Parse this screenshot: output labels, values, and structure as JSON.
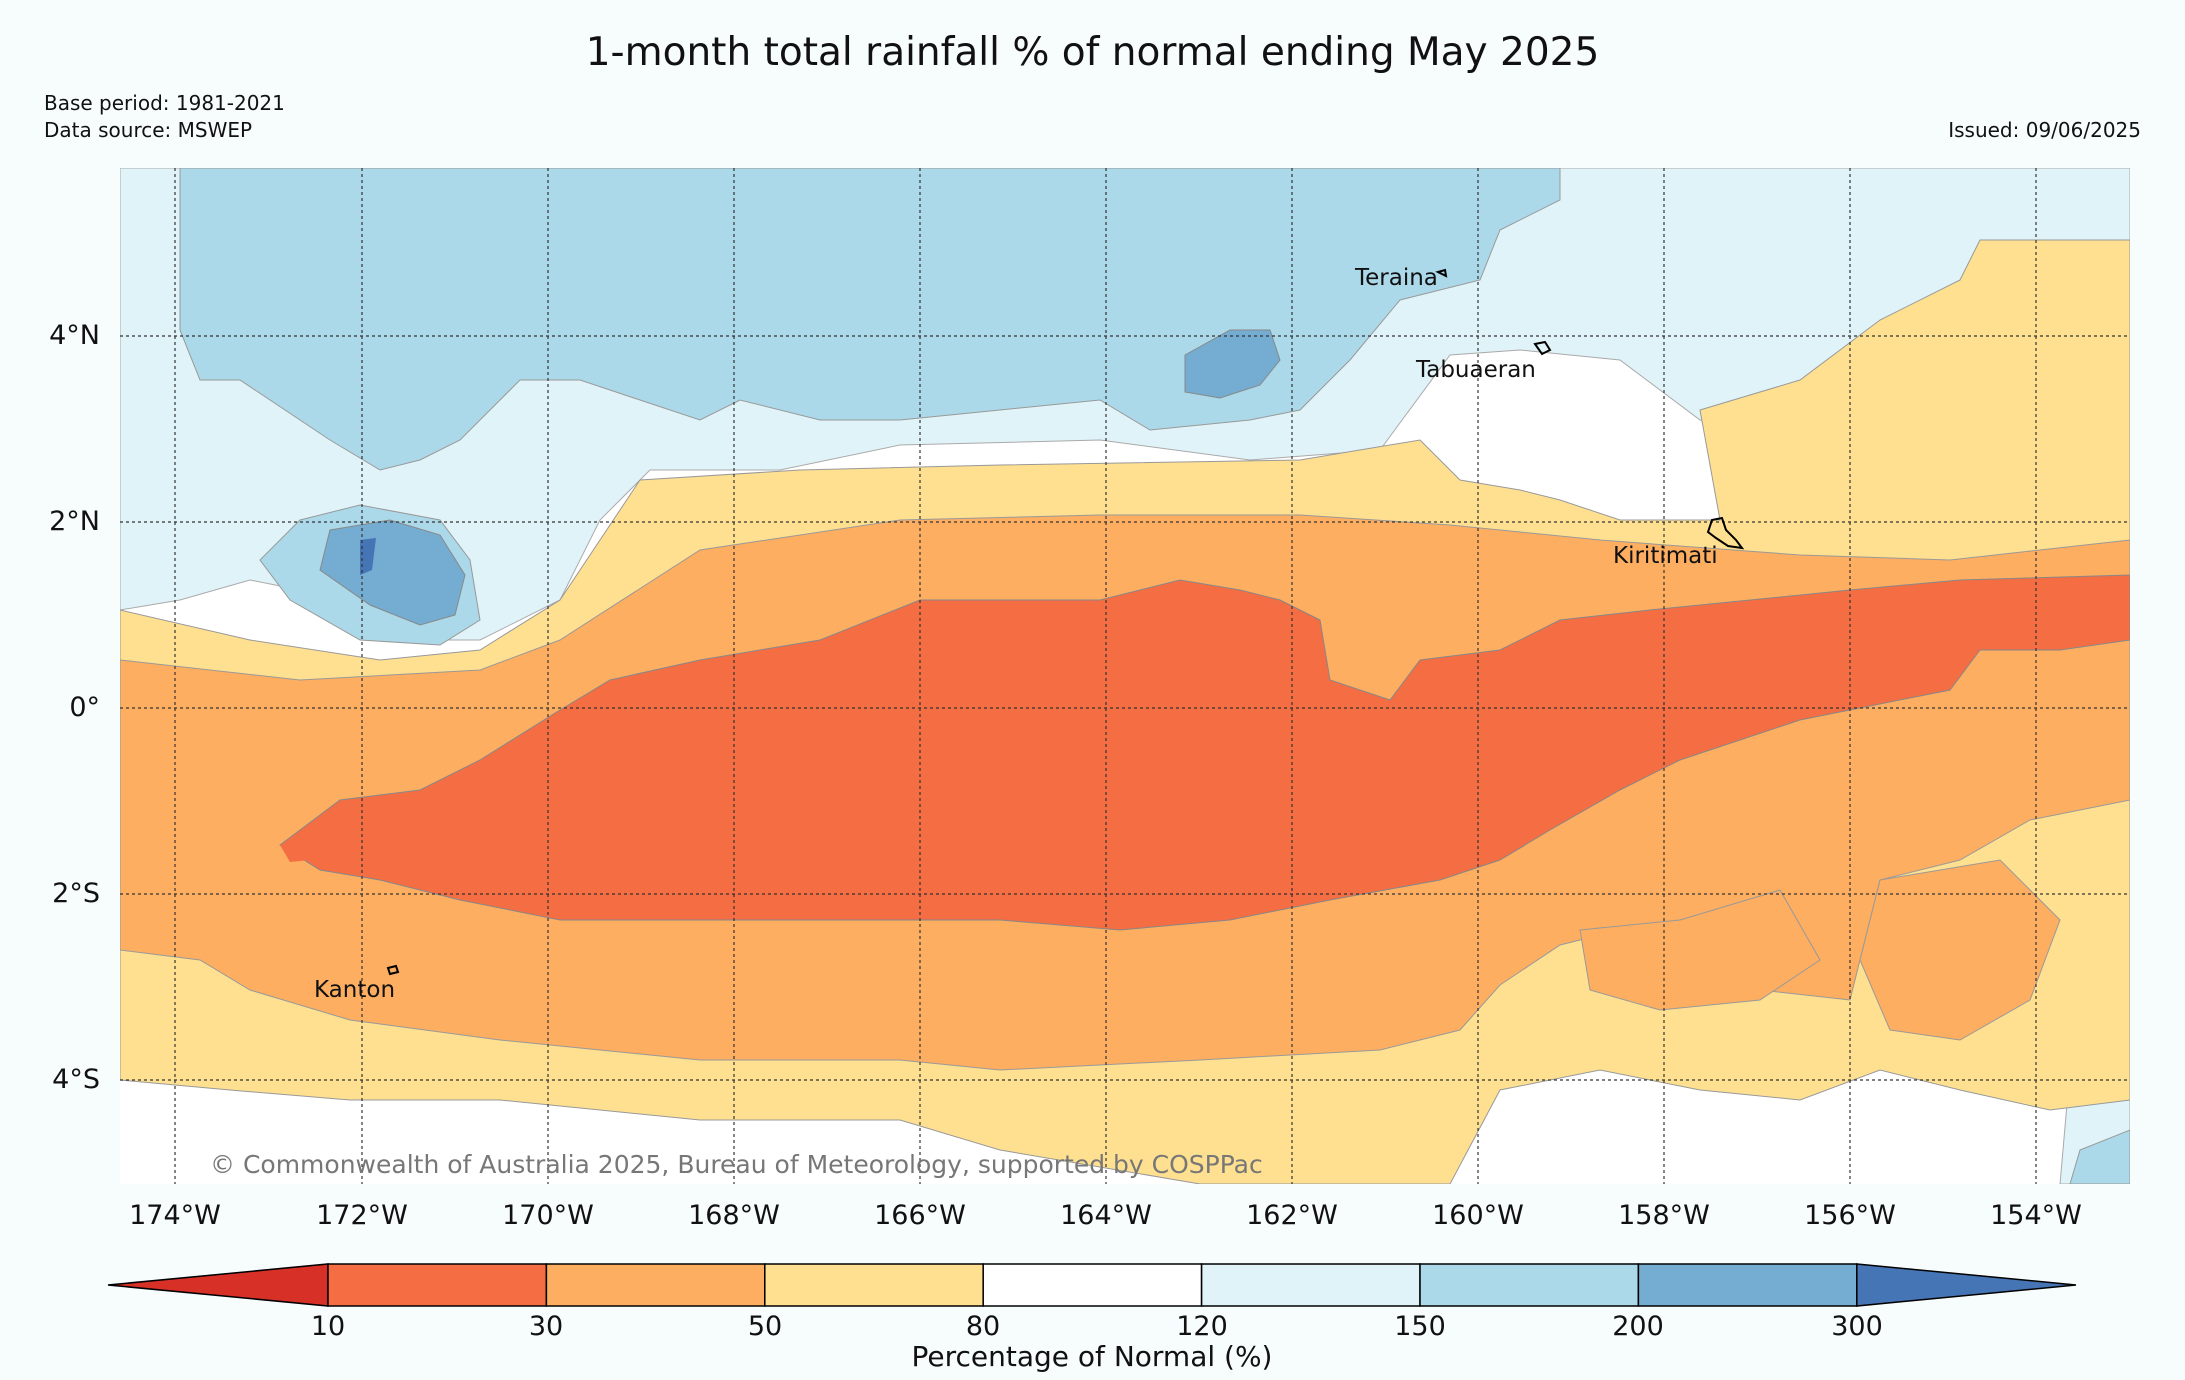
{
  "title": "1-month total rainfall % of normal ending May 2025",
  "base_period": "Base period: 1981-2021",
  "data_source": "Data source: MSWEP",
  "issued": "Issued: 09/06/2025",
  "credit": "© Commonwealth of Australia 2025, Bureau of Meteorology, supported by COSPPac",
  "map": {
    "lon_labels": [
      "174°W",
      "172°W",
      "170°W",
      "168°W",
      "166°W",
      "164°W",
      "162°W",
      "160°W",
      "158°W",
      "156°W",
      "154°W"
    ],
    "lat_labels": [
      "4°N",
      "2°N",
      "0°",
      "2°S",
      "4°S"
    ],
    "places": {
      "teraina": "Teraina",
      "tabuaeran": "Tabuaeran",
      "kiritimati": "Kiritimati",
      "kanton": "Kanton"
    }
  },
  "legend": {
    "title": "Percentage of Normal (%)",
    "ticks": [
      "10",
      "30",
      "50",
      "80",
      "120",
      "150",
      "200",
      "300"
    ],
    "colors": [
      "#d73027",
      "#f46d43",
      "#fdae61",
      "#fee090",
      "#ffffff",
      "#e0f3f8",
      "#abd9e9",
      "#74add1",
      "#4575b4"
    ]
  }
}
